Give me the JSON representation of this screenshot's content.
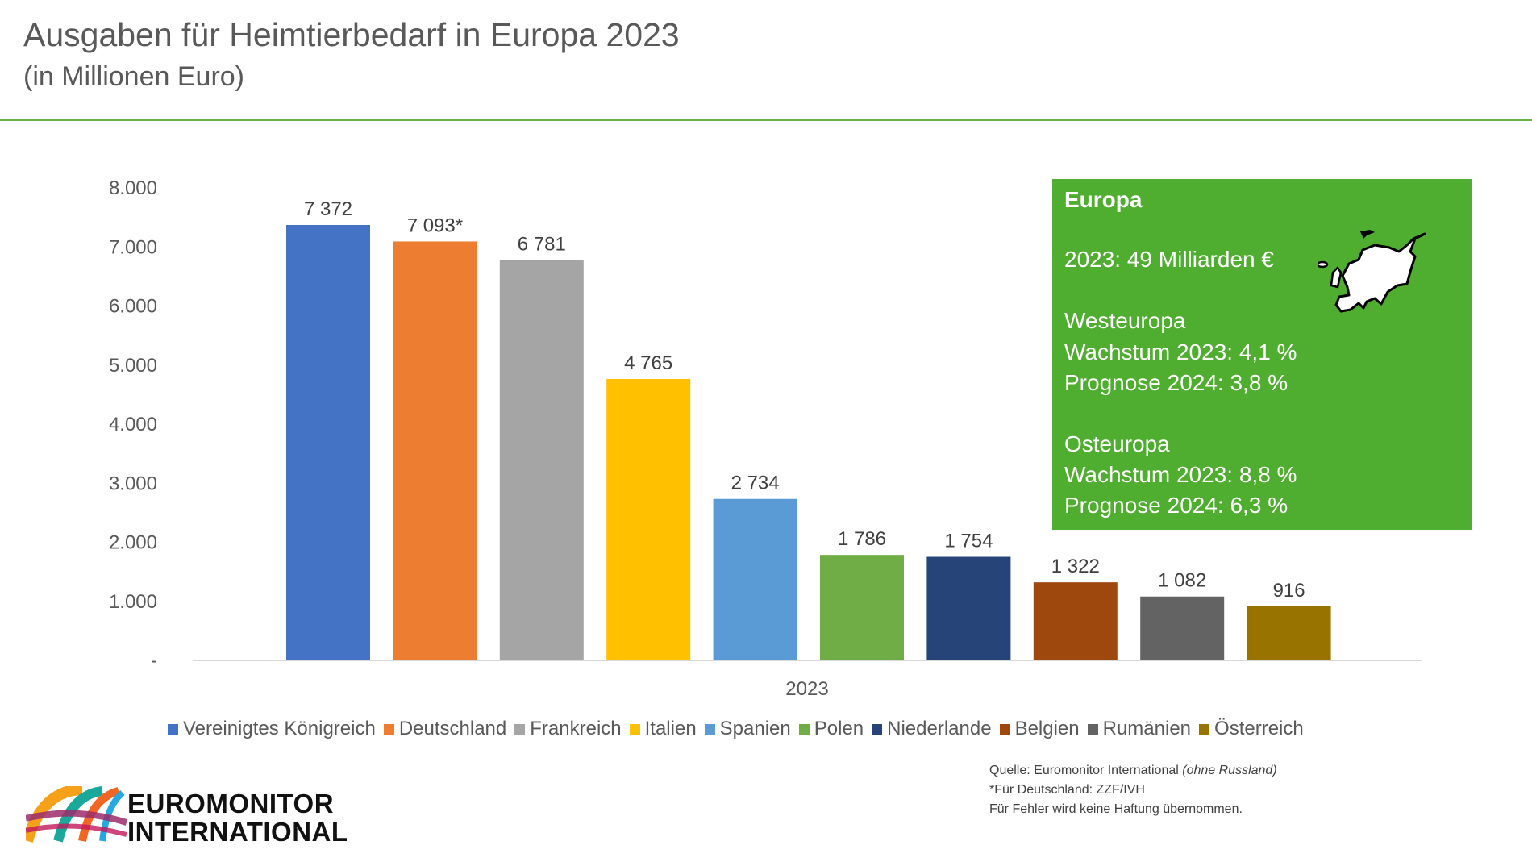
{
  "header": {
    "title": "Ausgaben für Heimtierbedarf in Europa 2023",
    "subtitle": "(in Millionen Euro)"
  },
  "chart_data": {
    "type": "bar",
    "categories": [
      "2023"
    ],
    "ylim": [
      0,
      8000
    ],
    "yticks": [
      "-",
      "1.000",
      "2.000",
      "3.000",
      "4.000",
      "5.000",
      "6.000",
      "7.000",
      "8.000"
    ],
    "grid": false,
    "legend_position": "bottom",
    "series": [
      {
        "name": "Vereinigtes Königreich",
        "values": [
          7372
        ],
        "label": "7 372",
        "color": "#4472c4"
      },
      {
        "name": "Deutschland",
        "values": [
          7093
        ],
        "label": "7 093*",
        "color": "#ed7d31"
      },
      {
        "name": "Frankreich",
        "values": [
          6781
        ],
        "label": "6 781",
        "color": "#a5a5a5"
      },
      {
        "name": "Italien",
        "values": [
          4765
        ],
        "label": "4 765",
        "color": "#ffc000"
      },
      {
        "name": "Spanien",
        "values": [
          2734
        ],
        "label": "2 734",
        "color": "#5b9bd5"
      },
      {
        "name": "Polen",
        "values": [
          1786
        ],
        "label": "1 786",
        "color": "#70ad47"
      },
      {
        "name": "Niederlande",
        "values": [
          1754
        ],
        "label": "1 754",
        "color": "#264478"
      },
      {
        "name": "Belgien",
        "values": [
          1322
        ],
        "label": "1 322",
        "color": "#9e480e"
      },
      {
        "name": "Rumänien",
        "values": [
          1082
        ],
        "label": "1 082",
        "color": "#636363"
      },
      {
        "name": "Österreich",
        "values": [
          916
        ],
        "label": "916",
        "color": "#997300"
      }
    ]
  },
  "infobox": {
    "heading": "Europa",
    "total": "2023: 49 Milliarden €",
    "west_heading": "Westeuropa",
    "west_growth": "Wachstum  2023: 4,1 %",
    "west_forecast": "Prognose  2024: 3,8 %",
    "east_heading": "Osteuropa",
    "east_growth": "Wachstum  2023: 8,8 %",
    "east_forecast": "Prognose  2024: 6,3 %",
    "background_color": "#4fad2f",
    "icon": "europe-map-icon"
  },
  "footer": {
    "source_prefix": "Quelle: Euromonitor International ",
    "source_note": "(ohne Russland)",
    "germany_note": "*Für Deutschland: ZZF/IVH",
    "disclaimer": "Für Fehler wird keine Haftung übernommen.",
    "logo_line1": "EUROMONITOR",
    "logo_line2": "INTERNATIONAL"
  }
}
